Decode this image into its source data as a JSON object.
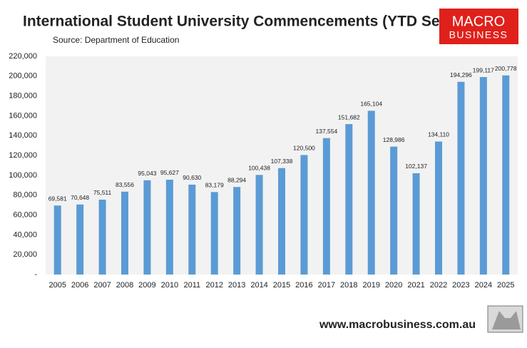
{
  "chart_data": {
    "type": "bar",
    "title": "International Student University Commencements (YTD Sept)",
    "subtitle": "Source: Department of Education",
    "categories": [
      "2005",
      "2006",
      "2007",
      "2008",
      "2009",
      "2010",
      "2011",
      "2012",
      "2013",
      "2014",
      "2015",
      "2016",
      "2017",
      "2018",
      "2019",
      "2020",
      "2021",
      "2022",
      "2023",
      "2024",
      "2025"
    ],
    "values": [
      69581,
      70648,
      75511,
      83556,
      95043,
      95627,
      90630,
      83179,
      88294,
      100438,
      107338,
      120500,
      137554,
      151682,
      165104,
      128986,
      102137,
      134110,
      194296,
      199117,
      200778
    ],
    "value_labels": [
      "69,581",
      "70,648",
      "75,511",
      "83,556",
      "95,043",
      "95,627",
      "90,630",
      "83,179",
      "88,294",
      "100,438",
      "107,338",
      "120,500",
      "137,554",
      "151,682",
      "165,104",
      "128,986",
      "102,137",
      "134,110",
      "194,296",
      "199,117",
      "200,778"
    ],
    "color": "#5b9bd5",
    "ylim": [
      0,
      220000
    ],
    "yticks": [
      {
        "value": 0,
        "label": "-"
      },
      {
        "value": 20000,
        "label": "20,000"
      },
      {
        "value": 40000,
        "label": "40,000"
      },
      {
        "value": 60000,
        "label": "60,000"
      },
      {
        "value": 80000,
        "label": "80,000"
      },
      {
        "value": 100000,
        "label": "100,000"
      },
      {
        "value": 120000,
        "label": "120,000"
      },
      {
        "value": 140000,
        "label": "140,000"
      },
      {
        "value": 160000,
        "label": "160,000"
      },
      {
        "value": 180000,
        "label": "180,000"
      },
      {
        "value": 200000,
        "label": "200,000"
      },
      {
        "value": 220000,
        "label": "220,000"
      }
    ],
    "grid": false
  },
  "branding": {
    "logo_top": "MACRO",
    "logo_bottom": "BUSINESS",
    "url": "www.macrobusiness.com.au"
  }
}
